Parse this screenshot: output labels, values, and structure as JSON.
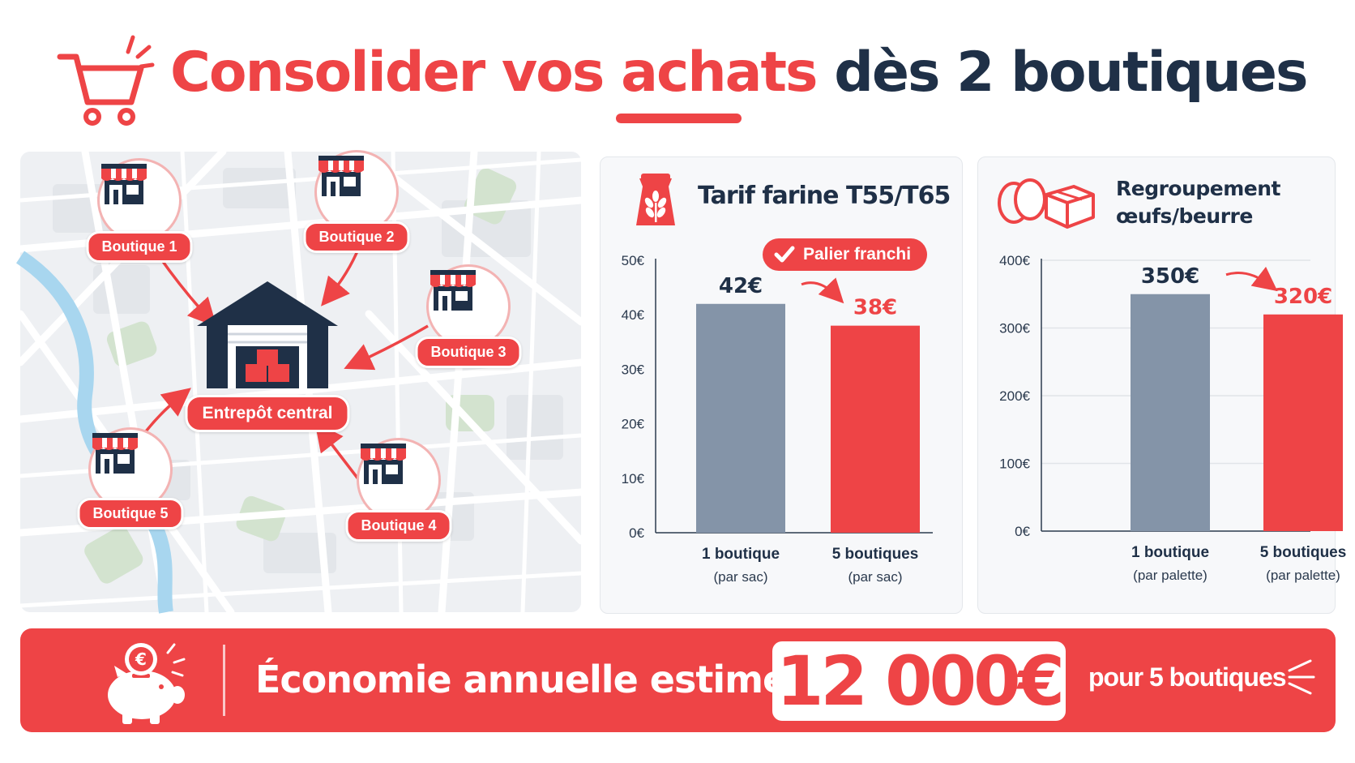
{
  "header": {
    "title_part1": "Consolider vos",
    "title_part2": "achats",
    "title_part3": "dès 2 boutiques",
    "icon": "shopping-cart-icon"
  },
  "map": {
    "shops": [
      {
        "label": "Boutique 1"
      },
      {
        "label": "Boutique 2"
      },
      {
        "label": "Boutique 3"
      },
      {
        "label": "Boutique 4"
      },
      {
        "label": "Boutique 5"
      }
    ],
    "warehouse_label": "Entrepôt central",
    "icons": [
      "store-icon",
      "warehouse-icon"
    ]
  },
  "colors": {
    "accent_red": "#ee4446",
    "bar_gray": "#8494a8",
    "dark_navy": "#1f3047"
  },
  "chart_data": [
    {
      "type": "bar",
      "title": "Tarif farine T55/T65",
      "categories": [
        "1 boutique",
        "5 boutiques"
      ],
      "category_notes": [
        "(par sac)",
        "(par sac)"
      ],
      "values": [
        42,
        38
      ],
      "value_labels": [
        "42€",
        "38€"
      ],
      "bar_colors": [
        "#8494a8",
        "#ee4446"
      ],
      "ylim": [
        0,
        50
      ],
      "yticks": [
        "0€",
        "10€",
        "20€",
        "30€",
        "40€",
        "50€"
      ],
      "grid": false,
      "annotation": "Palier franchi",
      "icon": "flour-bag-icon"
    },
    {
      "type": "bar",
      "title": "Regroupement œufs/beurre",
      "categories": [
        "1 boutique",
        "5 boutiques"
      ],
      "category_notes": [
        "(par palette)",
        "(par palette)"
      ],
      "values": [
        350,
        320
      ],
      "value_labels": [
        "350€",
        "320€"
      ],
      "bar_colors": [
        "#8494a8",
        "#ee4446"
      ],
      "ylim": [
        0,
        400
      ],
      "yticks": [
        "0€",
        "100€",
        "200€",
        "300€",
        "400€"
      ],
      "grid": true,
      "icon": "eggs-box-icon"
    }
  ],
  "banner": {
    "label": "Économie annuelle estimée :",
    "amount": "12 000€",
    "note": "pour 5 boutiques",
    "icon": "piggy-bank-icon"
  }
}
